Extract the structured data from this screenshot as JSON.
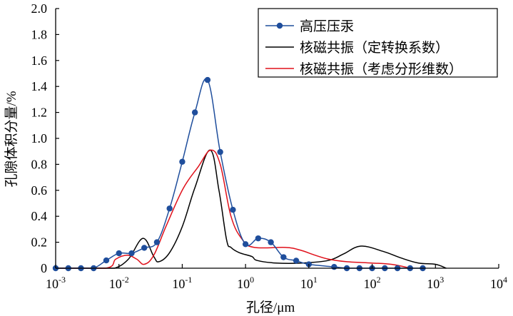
{
  "chart_data": {
    "type": "line",
    "xscale": "log",
    "xlim": [
      0.001,
      10000
    ],
    "ylim": [
      0,
      2.0
    ],
    "xlabel": "孔径/μm",
    "ylabel": "孔隙体积分量/%",
    "x_ticks": [
      {
        "base": "10",
        "exp": "-3",
        "value": 0.001
      },
      {
        "base": "10",
        "exp": "-2",
        "value": 0.01
      },
      {
        "base": "10",
        "exp": "-1",
        "value": 0.1
      },
      {
        "base": "10",
        "exp": "0",
        "value": 1
      },
      {
        "base": "10",
        "exp": "1",
        "value": 10
      },
      {
        "base": "10",
        "exp": "2",
        "value": 100
      },
      {
        "base": "10",
        "exp": "3",
        "value": 1000
      },
      {
        "base": "10",
        "exp": "4",
        "value": 10000
      }
    ],
    "y_ticks": [
      "0",
      "0.2",
      "0.4",
      "0.6",
      "0.8",
      "1.0",
      "1.2",
      "1.4",
      "1.6",
      "1.8",
      "2.0"
    ],
    "legend_position": "top-right",
    "series": [
      {
        "name": "高压压汞",
        "color": "#1f4e9c",
        "markers": true,
        "log10_x": [
          -3,
          -2.8,
          -2.6,
          -2.4,
          -2.2,
          -2.0,
          -1.8,
          -1.6,
          -1.4,
          -1.2,
          -1.0,
          -0.8,
          -0.6,
          -0.4,
          -0.2,
          0,
          0.2,
          0.4,
          0.6,
          0.8,
          1.0,
          1.4,
          1.6,
          1.8,
          2.0,
          2.2,
          2.4,
          2.6,
          2.8
        ],
        "y": [
          0,
          0,
          0,
          0,
          0.06,
          0.115,
          0.115,
          0.157,
          0.2,
          0.46,
          0.82,
          1.2,
          1.45,
          0.895,
          0.45,
          0.185,
          0.23,
          0.2,
          0.085,
          0.058,
          0.03,
          0.01,
          0,
          0,
          0,
          0,
          0,
          0,
          0
        ]
      },
      {
        "name": "核磁共振（定转换系数）",
        "color": "#000000",
        "markers": false,
        "log10_x": [
          -3,
          -2.3,
          -2.07,
          -1.85,
          -1.62,
          -1.45,
          -1.37,
          -1.2,
          -1.0,
          -0.8,
          -0.56,
          -0.42,
          -0.3,
          -0.23,
          -0.1,
          0.1,
          0.18,
          0.48,
          0.9,
          1.31,
          1.55,
          1.82,
          2.17,
          2.45,
          2.73,
          3.0,
          3.17
        ],
        "y": [
          0,
          0,
          0,
          0.07,
          0.23,
          0.09,
          0.05,
          0.12,
          0.32,
          0.62,
          0.91,
          0.6,
          0.22,
          0.16,
          0.12,
          0.09,
          0.06,
          0.04,
          0.04,
          0.06,
          0.11,
          0.17,
          0.13,
          0.08,
          0.04,
          0.03,
          0
        ]
      },
      {
        "name": "核磁共振（考虑分形维数）",
        "color": "#e0101a",
        "markers": false,
        "log10_x": [
          -3,
          -2.21,
          -2.05,
          -1.87,
          -1.72,
          -1.6,
          -1.45,
          -1.25,
          -0.99,
          -0.75,
          -0.55,
          -0.4,
          -0.23,
          -0.05,
          0.14,
          0.63,
          0.86,
          1.1,
          1.31,
          1.6,
          1.99,
          2.3,
          2.61
        ],
        "y": [
          0,
          0,
          0.07,
          0.1,
          0.07,
          0.03,
          0.1,
          0.33,
          0.61,
          0.78,
          0.91,
          0.8,
          0.4,
          0.22,
          0.16,
          0.16,
          0.14,
          0.1,
          0.07,
          0.05,
          0.04,
          0.03,
          0
        ]
      }
    ]
  }
}
